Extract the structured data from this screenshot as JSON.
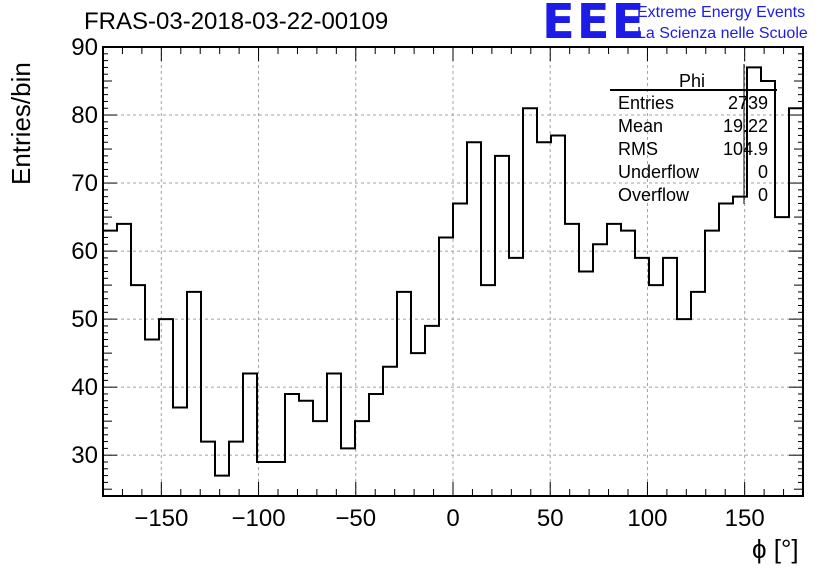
{
  "title": "FRAS-03-2018-03-22-00109",
  "logo": {
    "text": "EEE",
    "line1": "Extreme Energy Events",
    "line2": "La Scienza nelle Scuole",
    "color": "#1c1ce6"
  },
  "stats": {
    "title": "Phi",
    "rows": [
      {
        "name": "Entries",
        "value": "2739"
      },
      {
        "name": "Mean",
        "value": "19.22"
      },
      {
        "name": "RMS",
        "value": "104.9"
      },
      {
        "name": "Underflow",
        "value": "0"
      },
      {
        "name": "Overflow",
        "value": "0"
      }
    ]
  },
  "chart_data": {
    "type": "histogram",
    "title": "FRAS-03-2018-03-22-00109",
    "xlabel": "ϕ [°]",
    "ylabel": "Entries/bin",
    "xlim": [
      -180,
      180
    ],
    "ylim": [
      24,
      90
    ],
    "bin_width": 7.2,
    "bin_edges_start": -180,
    "values": [
      63,
      64,
      55,
      47,
      50,
      37,
      54,
      32,
      27,
      32,
      42,
      29,
      29,
      39,
      38,
      35,
      42,
      31,
      35,
      39,
      43,
      54,
      45,
      49,
      62,
      67,
      76,
      55,
      74,
      59,
      81,
      76,
      77,
      64,
      57,
      61,
      64,
      63,
      59,
      55,
      59,
      50,
      54,
      63,
      67,
      68,
      87,
      85,
      65,
      81
    ],
    "xticks": [
      -150,
      -100,
      -50,
      0,
      50,
      100,
      150
    ],
    "xtick_labels": [
      "−150",
      "−100",
      "−50",
      "0",
      "50",
      "100",
      "150"
    ],
    "yticks": [
      30,
      40,
      50,
      60,
      70,
      80,
      90
    ],
    "grid": true,
    "line_color": "#000000"
  }
}
